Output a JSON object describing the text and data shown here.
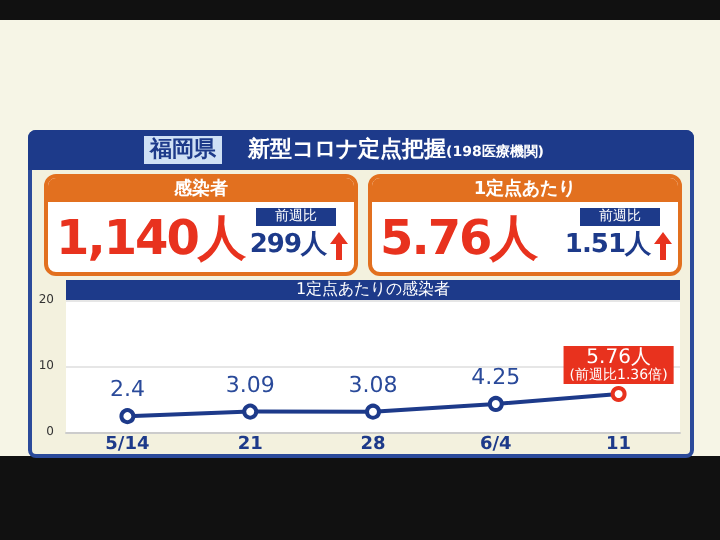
{
  "chart_data": [
    {
      "type": "other",
      "title": "福岡県",
      "subtitle": "新型コロナ定点把握",
      "annotations": [
        "(198医療機関)",
        "感染者",
        "1,140人",
        "前週比",
        "299人",
        "1定点あたり",
        "5.76人",
        "前週比",
        "1.51人"
      ]
    },
    {
      "type": "line",
      "title": "1定点あたりの感染者",
      "categories": [
        "5/14",
        "21",
        "28",
        "6/4",
        "11"
      ],
      "values": [
        2.4,
        3.09,
        3.08,
        4.25,
        5.76
      ],
      "value_labels": [
        "2.4",
        "3.09",
        "3.08",
        "4.25",
        "5.76人"
      ],
      "color": "#1d3a8a",
      "colors": [
        "#1d3a8a",
        "#1d3a8a",
        "#1d3a8a",
        "#1d3a8a",
        "#e8321e"
      ],
      "annotations": [
        {
          "text": "(前週比1.36倍)",
          "x": "11",
          "y": 5.76
        }
      ],
      "ylim": [
        0,
        20
      ],
      "yticks": [
        0,
        10,
        20
      ],
      "grid": "y",
      "marker": "circle"
    }
  ]
}
